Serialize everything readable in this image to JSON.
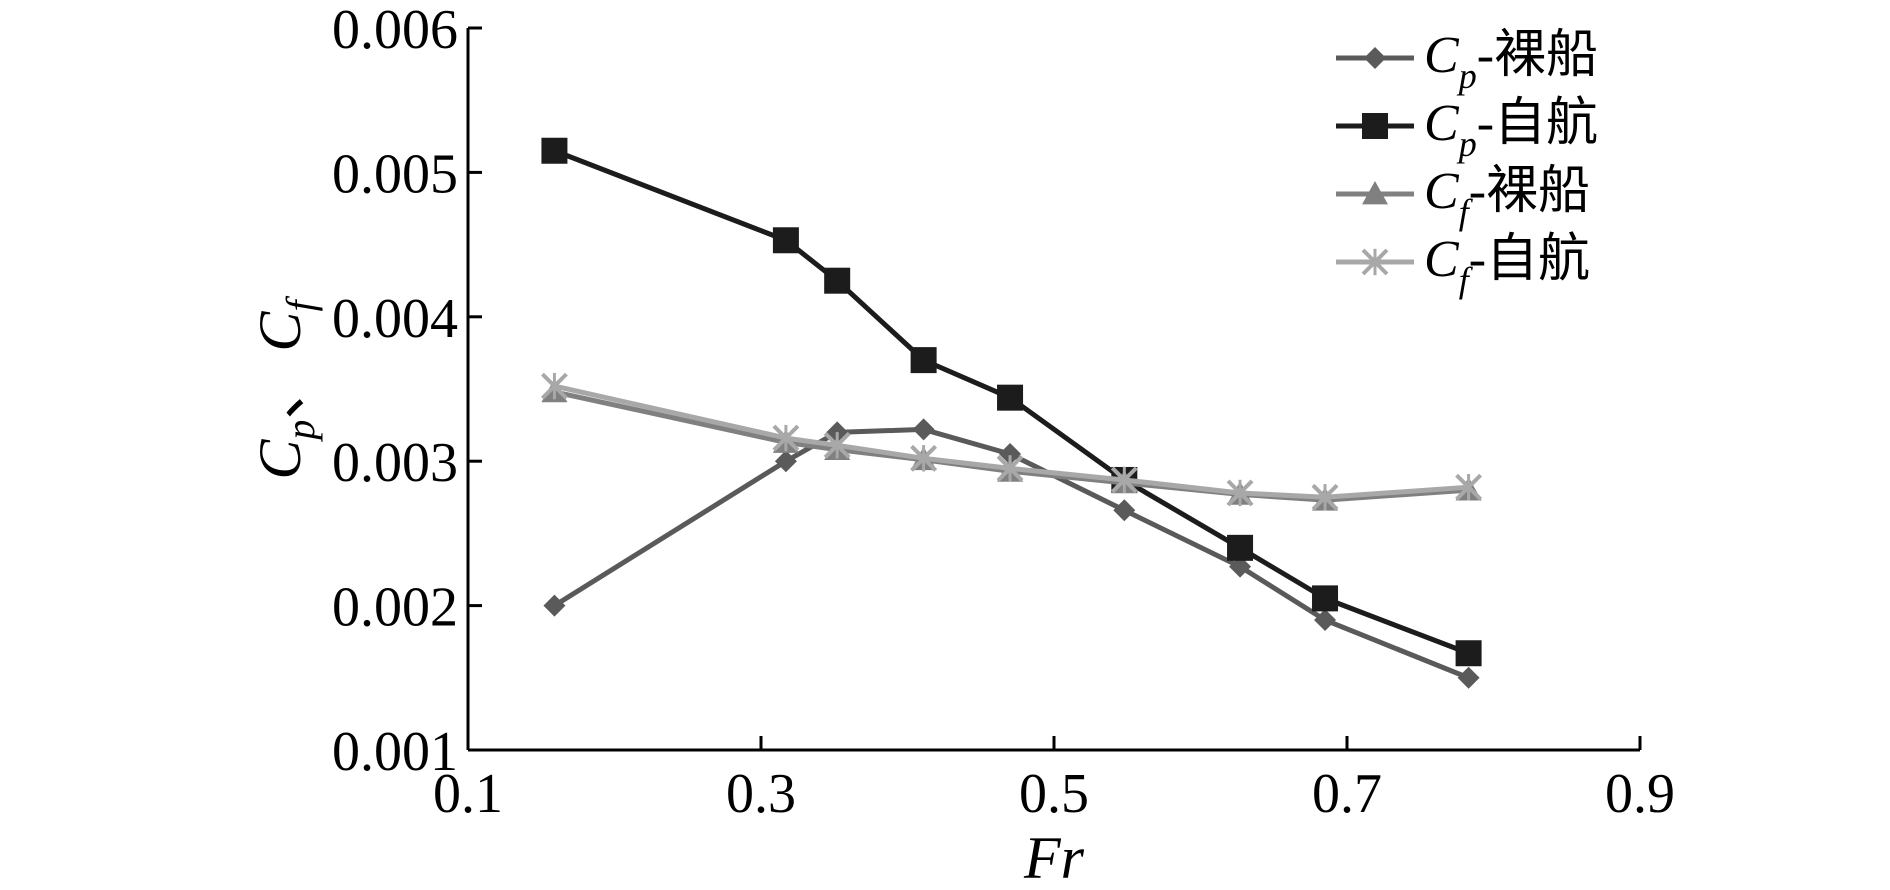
{
  "chart_data": {
    "type": "line",
    "xlabel": "Fr",
    "ylabel": {
      "symbol1": "C",
      "sub1": "p",
      "separator": "、",
      "symbol2": "C",
      "sub2": "f"
    },
    "xlim": [
      0.1,
      0.9
    ],
    "ylim": [
      0.001,
      0.006
    ],
    "x_ticks": [
      "0.1",
      "0.3",
      "0.5",
      "0.7",
      "0.9"
    ],
    "y_ticks": [
      "0.001",
      "0.002",
      "0.003",
      "0.004",
      "0.005",
      "0.006"
    ],
    "legend_position": "top-right",
    "grid": false,
    "series": [
      {
        "name": "Cp-裸船",
        "label": {
          "symbol": "C",
          "sub": "p",
          "suffix": "-裸船"
        },
        "color": "#5a5a5a",
        "marker": "diamond",
        "x": [
          0.159,
          0.317,
          0.352,
          0.411,
          0.47,
          0.548,
          0.627,
          0.685,
          0.783
        ],
        "y": [
          0.002,
          0.003,
          0.0032,
          0.00322,
          0.00305,
          0.00266,
          0.00227,
          0.0019,
          0.0015
        ]
      },
      {
        "name": "Cp-自航",
        "label": {
          "symbol": "C",
          "sub": "p",
          "suffix": "-自航"
        },
        "color": "#1c1c1c",
        "marker": "square",
        "x": [
          0.159,
          0.317,
          0.352,
          0.411,
          0.47,
          0.548,
          0.627,
          0.685,
          0.783
        ],
        "y": [
          0.00515,
          0.00453,
          0.00425,
          0.0037,
          0.00344,
          0.00287,
          0.0024,
          0.00205,
          0.00167
        ]
      },
      {
        "name": "Cf-裸船",
        "label": {
          "symbol": "C",
          "sub": "f",
          "suffix": "-裸船"
        },
        "color": "#808080",
        "marker": "triangle",
        "x": [
          0.159,
          0.317,
          0.352,
          0.411,
          0.47,
          0.548,
          0.627,
          0.685,
          0.783
        ],
        "y": [
          0.00348,
          0.00313,
          0.00308,
          0.00301,
          0.00293,
          0.00285,
          0.00277,
          0.00273,
          0.0028
        ]
      },
      {
        "name": "Cf-自航",
        "label": {
          "symbol": "C",
          "sub": "f",
          "suffix": "-自航"
        },
        "color": "#a8a8a8",
        "marker": "x",
        "x": [
          0.159,
          0.317,
          0.352,
          0.411,
          0.47,
          0.548,
          0.627,
          0.685,
          0.783
        ],
        "y": [
          0.00352,
          0.00316,
          0.00311,
          0.00302,
          0.00295,
          0.00287,
          0.00278,
          0.00275,
          0.00282
        ]
      }
    ]
  }
}
